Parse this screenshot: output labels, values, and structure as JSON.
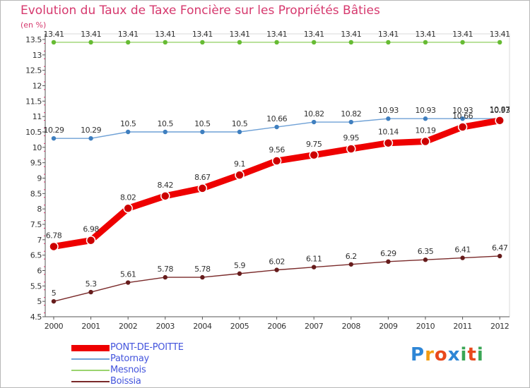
{
  "chart_data": {
    "type": "line",
    "title": "Evolution du Taux de Taxe Foncière sur les Propriétés Bâties",
    "ylabel": "(en %)",
    "xlabel": "",
    "x": [
      "2000",
      "2001",
      "2002",
      "2003",
      "2004",
      "2005",
      "2006",
      "2007",
      "2008",
      "2009",
      "2010",
      "2011",
      "2012"
    ],
    "ylim": [
      4.5,
      13.5
    ],
    "yticks": [
      "4.5",
      "5",
      "5.5",
      "6",
      "6.5",
      "7",
      "7.5",
      "8",
      "8.5",
      "9",
      "9.5",
      "10",
      "10.5",
      "11",
      "11.5",
      "12",
      "12.5",
      "13",
      "13.5"
    ],
    "grid": false,
    "legend_position": "bottom-left",
    "series": [
      {
        "name": "PONT-DE-POITTE",
        "color": "#ee0000",
        "point_color": "#cc0000",
        "values": [
          6.78,
          6.98,
          8.02,
          8.42,
          8.67,
          9.1,
          9.56,
          9.75,
          9.95,
          10.14,
          10.19,
          10.66,
          10.87
        ],
        "labels": [
          "6.78",
          "6.98",
          "8.02",
          "8.42",
          "8.67",
          "9.1",
          "9.56",
          "9.75",
          "9.95",
          "10.14",
          "10.19",
          "10.66",
          "10.87"
        ]
      },
      {
        "name": "Patornay",
        "color": "#6fa1d6",
        "point_color": "#3f7fbf",
        "values": [
          10.29,
          10.29,
          10.5,
          10.5,
          10.5,
          10.5,
          10.66,
          10.82,
          10.82,
          10.93,
          10.93,
          10.93,
          10.93
        ],
        "labels": [
          "10.29",
          "10.29",
          "10.5",
          "10.5",
          "10.5",
          "10.5",
          "10.66",
          "10.82",
          "10.82",
          "10.93",
          "10.93",
          "10.93",
          "10.93"
        ]
      },
      {
        "name": "Mesnois",
        "color": "#9ad46e",
        "point_color": "#66bb33",
        "values": [
          13.41,
          13.41,
          13.41,
          13.41,
          13.41,
          13.41,
          13.41,
          13.41,
          13.41,
          13.41,
          13.41,
          13.41,
          13.41
        ],
        "labels": [
          "13.41",
          "13.41",
          "13.41",
          "13.41",
          "13.41",
          "13.41",
          "13.41",
          "13.41",
          "13.41",
          "13.41",
          "13.41",
          "13.41",
          "13.41"
        ]
      },
      {
        "name": "Boissia",
        "color": "#7a2a2a",
        "point_color": "#661c1c",
        "values": [
          5,
          5.3,
          5.61,
          5.78,
          5.78,
          5.9,
          6.02,
          6.11,
          6.2,
          6.29,
          6.35,
          6.41,
          6.47
        ],
        "labels": [
          "5",
          "5.3",
          "5.61",
          "5.78",
          "5.78",
          "5.9",
          "6.02",
          "6.11",
          "6.2",
          "6.29",
          "6.35",
          "6.41",
          "6.47"
        ]
      }
    ],
    "legend_label_color": "#4455dd"
  },
  "logo": {
    "letters": [
      "P",
      "r",
      "o",
      "x",
      "i",
      "t",
      "i"
    ],
    "colors": [
      "#2e86d6",
      "#f39c12",
      "#e8491d",
      "#2e86d6",
      "#3aa655",
      "#e8491d",
      "#3aa655"
    ]
  }
}
